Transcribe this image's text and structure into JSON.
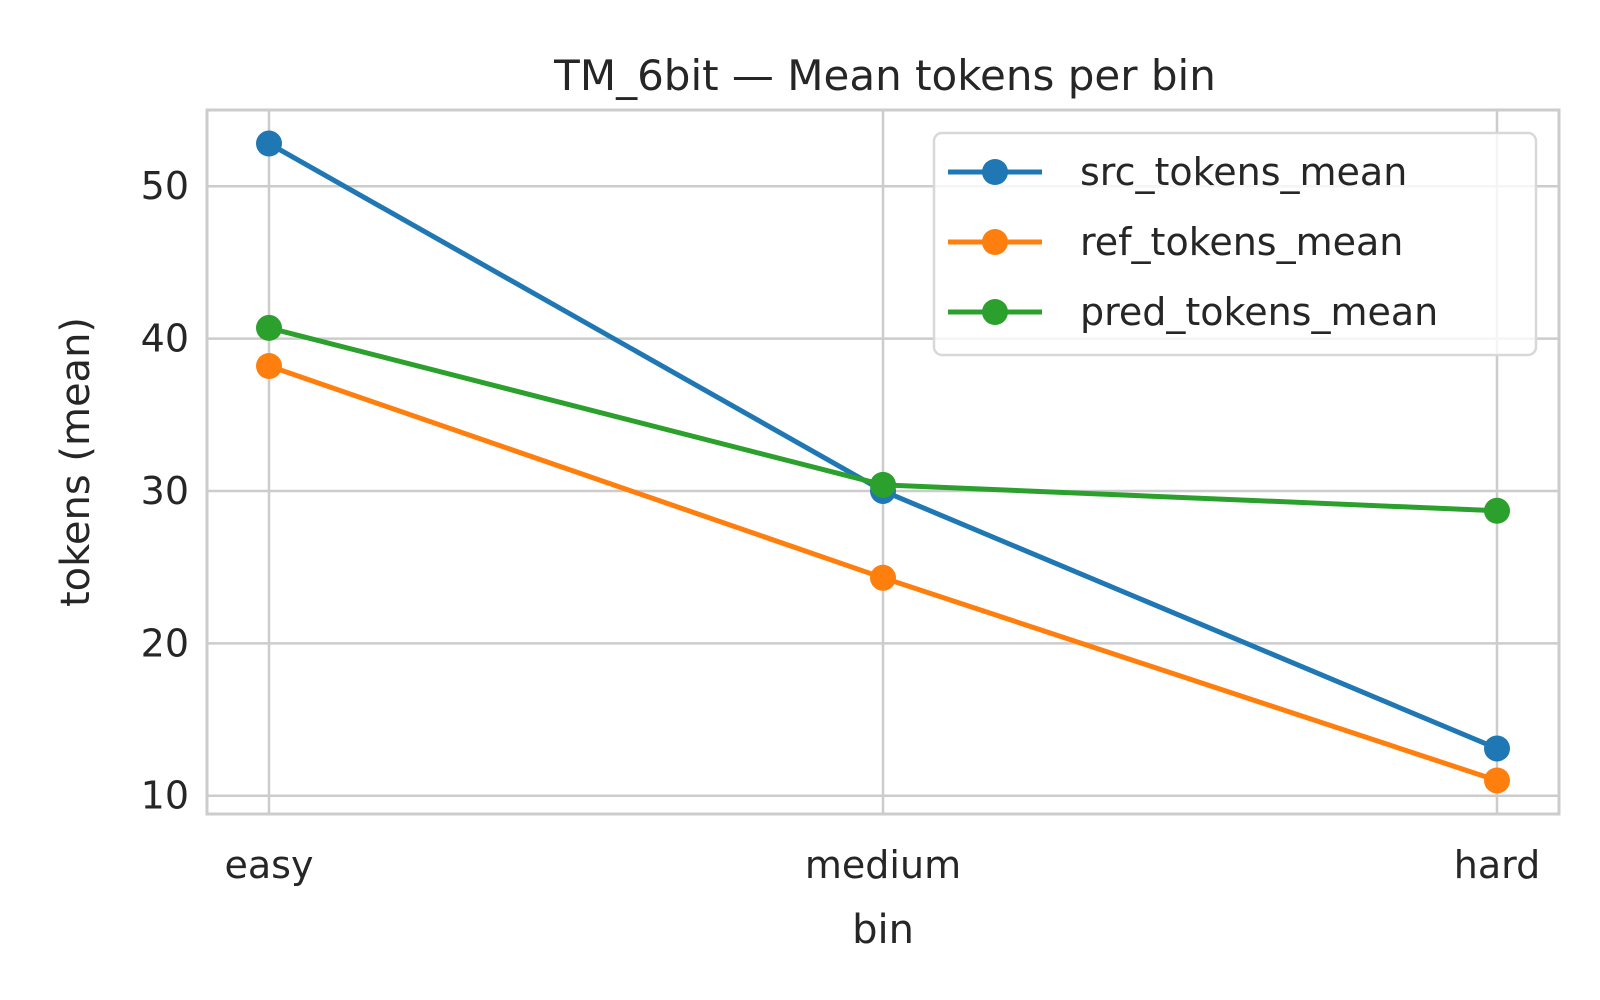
{
  "chart_data": {
    "type": "line",
    "title": "TM_6bit — Mean tokens per bin",
    "xlabel": "bin",
    "ylabel": "tokens (mean)",
    "categories": [
      "easy",
      "medium",
      "hard"
    ],
    "yticks": [
      10,
      20,
      30,
      40,
      50
    ],
    "ylim": [
      8.8,
      55.0
    ],
    "grid": true,
    "legend_position": "top-right",
    "series": [
      {
        "name": "src_tokens_mean",
        "values": [
          52.8,
          30.0,
          13.1
        ],
        "color": "#1f77b4"
      },
      {
        "name": "ref_tokens_mean",
        "values": [
          38.2,
          24.3,
          11.0
        ],
        "color": "#ff7f0e"
      },
      {
        "name": "pred_tokens_mean",
        "values": [
          40.7,
          30.4,
          28.7
        ],
        "color": "#2ca02c"
      }
    ]
  }
}
